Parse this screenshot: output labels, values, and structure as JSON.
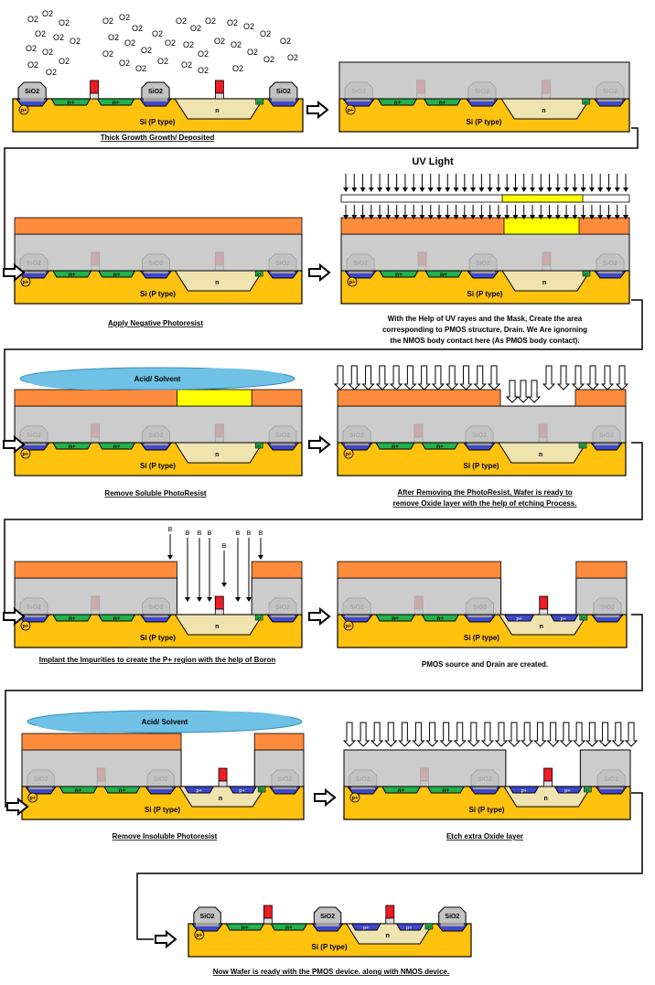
{
  "colors": {
    "substrate": "#FFC20E",
    "oxide": "#C3C3C3",
    "nplus": "#22B14C",
    "pplus": "#3F48CC",
    "nwell": "#EFE4B0",
    "gate": "#ED1C24",
    "photoresist": "#FF8C3C",
    "mask_opening": "#FFFF00",
    "acid": "#6FC1E6"
  },
  "labels": {
    "sio2": "SiO2",
    "substrate": "Si (P type)",
    "nplus": "n+",
    "pplus": "p+",
    "nwell": "n",
    "body_pplus": "p+",
    "body_nplus": "n+",
    "o2": "O2",
    "boron": "B",
    "uv_light": "UV Light",
    "acid_solvent": "Acid/ Solvent"
  },
  "steps": [
    {
      "id": "step-1",
      "caption": [
        "Thick Growth Growth/ Deposited"
      ],
      "underline": true
    },
    {
      "id": "step-2",
      "caption": []
    },
    {
      "id": "step-3",
      "caption": [
        "Apply Negative Photoresist"
      ],
      "underline": true
    },
    {
      "id": "step-4",
      "caption": [
        "With the Help of UV rayes and the Mask, Create the area",
        "corresponding to PMOS structure, Drain. We Are ignorning",
        "the NMOS body contact here (As PMOS body contact)."
      ]
    },
    {
      "id": "step-5",
      "caption": [
        "Remove Soluble PhotoResist"
      ],
      "underline": true
    },
    {
      "id": "step-6",
      "caption": [
        "After Removing the PhotoResist, Wafer is ready to",
        "remove Oxide layer with the help of etching Process."
      ],
      "underline": true
    },
    {
      "id": "step-7",
      "caption": [
        "Implant the Impurities to create the P+ region with the help of Boron"
      ],
      "underline": true
    },
    {
      "id": "step-8",
      "caption": [
        "PMOS source and Drain are created."
      ]
    },
    {
      "id": "step-9",
      "caption": [
        "Remove Insoluble Photoresist"
      ],
      "underline": true
    },
    {
      "id": "step-10",
      "caption": [
        "Etch extra Oxide layer"
      ],
      "underline": true
    },
    {
      "id": "step-11",
      "caption": [
        "Now Wafer is ready with the PMOS device. along with NMOS device."
      ],
      "underline": true
    }
  ]
}
